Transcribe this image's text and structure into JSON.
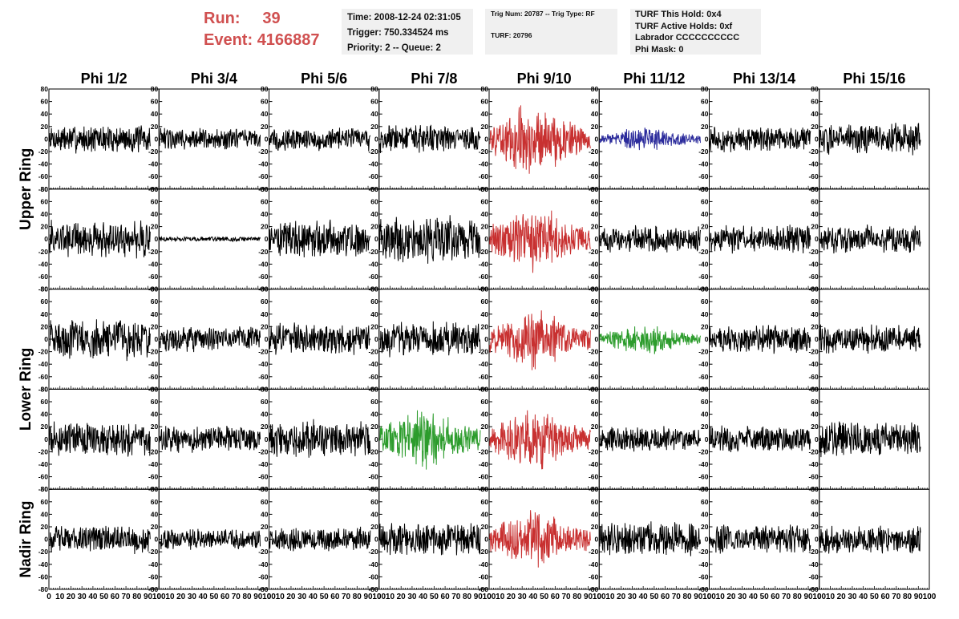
{
  "header": {
    "run_label": "Run:",
    "run_value": "39",
    "event_label": "Event:",
    "event_value": "4166887",
    "time": "Time: 2008-12-24 02:31:05",
    "trigger": "Trigger: 750.334524 ms",
    "priority": "Priority: 2 -- Queue: 2",
    "trig_num": "Trig Num: 20787 -- Trig Type: RF",
    "turf": "TURF: 20796",
    "turf_hold": "TURF This Hold: 0x4",
    "turf_active": "TURF Active Holds: 0xf",
    "labrador": "Labrador CCCCCCCCCC",
    "phi_mask": "Phi Mask: 0"
  },
  "colors": {
    "header_red": "#d05050",
    "black": "#000000",
    "red": "#c83030",
    "blue": "#2c2c9c",
    "green": "#2c9c2c"
  },
  "chart_data": {
    "type": "line",
    "column_titles": [
      "Phi 1/2",
      "Phi 3/4",
      "Phi 5/6",
      "Phi 7/8",
      "Phi 9/10",
      "Phi 11/12",
      "Phi 13/14",
      "Phi 15/16"
    ],
    "row_titles": [
      "Upper Ring",
      "Lower Ring",
      "Nadir Ring"
    ],
    "ylim": [
      -80,
      80
    ],
    "xlim": [
      0,
      100
    ],
    "y_ticks": [
      -80,
      -60,
      -40,
      -20,
      0,
      20,
      40,
      60,
      80
    ],
    "x_ticks": [
      0,
      10,
      20,
      30,
      40,
      50,
      60,
      70,
      80,
      90,
      100
    ],
    "panels": [
      {
        "row": 0,
        "col": 0,
        "color": "black",
        "amp": 18
      },
      {
        "row": 0,
        "col": 1,
        "color": "black",
        "amp": 14
      },
      {
        "row": 0,
        "col": 2,
        "color": "black",
        "amp": 15
      },
      {
        "row": 0,
        "col": 3,
        "color": "black",
        "amp": 18
      },
      {
        "row": 0,
        "col": 4,
        "color": "red",
        "amp": 40
      },
      {
        "row": 0,
        "col": 5,
        "color": "blue",
        "amp": 13
      },
      {
        "row": 0,
        "col": 6,
        "color": "black",
        "amp": 16
      },
      {
        "row": 0,
        "col": 7,
        "color": "black",
        "amp": 20
      },
      {
        "row": 1,
        "col": 0,
        "color": "black",
        "amp": 24
      },
      {
        "row": 1,
        "col": 1,
        "color": "black",
        "amp": 3
      },
      {
        "row": 1,
        "col": 2,
        "color": "black",
        "amp": 24
      },
      {
        "row": 1,
        "col": 3,
        "color": "black",
        "amp": 30
      },
      {
        "row": 1,
        "col": 4,
        "color": "red",
        "amp": 36
      },
      {
        "row": 1,
        "col": 5,
        "color": "black",
        "amp": 17
      },
      {
        "row": 1,
        "col": 6,
        "color": "black",
        "amp": 18
      },
      {
        "row": 1,
        "col": 7,
        "color": "black",
        "amp": 18
      },
      {
        "row": 2,
        "col": 0,
        "color": "black",
        "amp": 26
      },
      {
        "row": 2,
        "col": 1,
        "color": "black",
        "amp": 16
      },
      {
        "row": 2,
        "col": 2,
        "color": "black",
        "amp": 20
      },
      {
        "row": 2,
        "col": 3,
        "color": "black",
        "amp": 22
      },
      {
        "row": 2,
        "col": 4,
        "color": "red",
        "amp": 34
      },
      {
        "row": 2,
        "col": 5,
        "color": "green",
        "amp": 17
      },
      {
        "row": 2,
        "col": 6,
        "color": "black",
        "amp": 18
      },
      {
        "row": 2,
        "col": 7,
        "color": "black",
        "amp": 18
      },
      {
        "row": 3,
        "col": 0,
        "color": "black",
        "amp": 22
      },
      {
        "row": 3,
        "col": 1,
        "color": "black",
        "amp": 17
      },
      {
        "row": 3,
        "col": 2,
        "color": "black",
        "amp": 24
      },
      {
        "row": 3,
        "col": 3,
        "color": "green",
        "amp": 34
      },
      {
        "row": 3,
        "col": 4,
        "color": "red",
        "amp": 34
      },
      {
        "row": 3,
        "col": 5,
        "color": "black",
        "amp": 16
      },
      {
        "row": 3,
        "col": 6,
        "color": "black",
        "amp": 18
      },
      {
        "row": 3,
        "col": 7,
        "color": "black",
        "amp": 22
      },
      {
        "row": 4,
        "col": 0,
        "color": "black",
        "amp": 18
      },
      {
        "row": 4,
        "col": 1,
        "color": "black",
        "amp": 13
      },
      {
        "row": 4,
        "col": 2,
        "color": "black",
        "amp": 15
      },
      {
        "row": 4,
        "col": 3,
        "color": "black",
        "amp": 22
      },
      {
        "row": 4,
        "col": 4,
        "color": "red",
        "amp": 32
      },
      {
        "row": 4,
        "col": 5,
        "color": "black",
        "amp": 22
      },
      {
        "row": 4,
        "col": 6,
        "color": "black",
        "amp": 18
      },
      {
        "row": 4,
        "col": 7,
        "color": "black",
        "amp": 18
      }
    ]
  }
}
